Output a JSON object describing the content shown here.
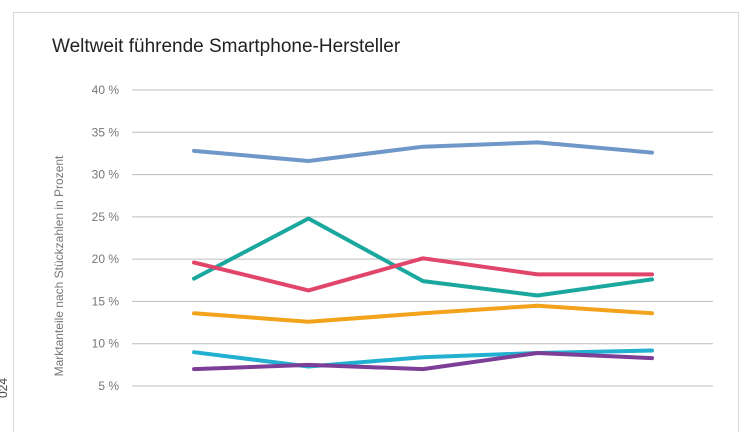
{
  "side_note": "024",
  "chart_data": {
    "type": "line",
    "title": "Weltweit führende Smartphone-Hersteller",
    "ylabel": "Marktanteile nach Stückzahlen in Prozent",
    "xlabel": "",
    "ylim": [
      5,
      40
    ],
    "yticks": [
      5,
      10,
      15,
      20,
      25,
      30,
      35,
      40
    ],
    "ytick_labels": [
      "5 %",
      "10 %",
      "15 %",
      "20 %",
      "25 %",
      "30 %",
      "35 %",
      "40 %"
    ],
    "grid": true,
    "x": [
      1,
      2,
      3,
      4,
      5
    ],
    "series": [
      {
        "values": [
          32.8,
          31.6,
          33.3,
          33.8,
          32.6
        ],
        "color": "#6f97c8"
      },
      {
        "values": [
          17.7,
          24.8,
          17.4,
          15.7,
          17.6
        ],
        "color": "#1aa89e"
      },
      {
        "values": [
          19.6,
          16.3,
          20.1,
          18.2,
          18.2
        ],
        "color": "#e2456a"
      },
      {
        "values": [
          13.6,
          12.6,
          13.6,
          14.5,
          13.6
        ],
        "color": "#f2a31b"
      },
      {
        "values": [
          9.0,
          7.3,
          8.4,
          8.9,
          9.2
        ],
        "color": "#22b0d0"
      },
      {
        "values": [
          7.0,
          7.5,
          7.0,
          8.9,
          8.3
        ],
        "color": "#7c3e96"
      }
    ]
  }
}
